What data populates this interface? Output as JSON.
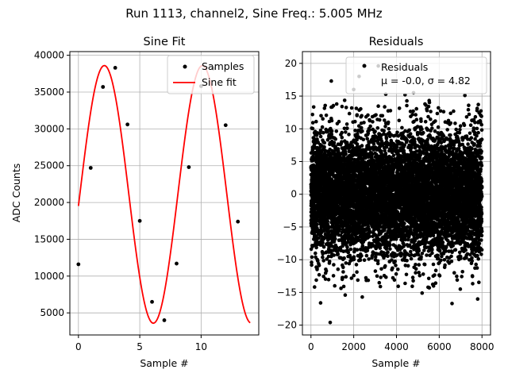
{
  "figure": {
    "suptitle": "Run 1113, channel2, Sine Freq.: 5.005 MHz"
  },
  "chart_data": [
    {
      "type": "line",
      "title": "Sine Fit",
      "xlabel": "Sample #",
      "ylabel": "ADC Counts",
      "xlim": [
        -0.7,
        14.7
      ],
      "ylim": [
        2000,
        40500
      ],
      "xticks": [
        0,
        5,
        10
      ],
      "yticks": [
        5000,
        10000,
        15000,
        20000,
        25000,
        30000,
        35000,
        40000
      ],
      "grid": true,
      "legend_position": "upper right",
      "series": [
        {
          "name": "Samples",
          "style": "scatter",
          "color": "#000000",
          "x": [
            0,
            1,
            2,
            3,
            4,
            5,
            6,
            7,
            8,
            9,
            10,
            11,
            12,
            13
          ],
          "y": [
            11600,
            24700,
            35700,
            38300,
            30600,
            17500,
            6500,
            4000,
            11700,
            24800,
            35800,
            38200,
            30500,
            17400
          ]
        },
        {
          "name": "Sine fit",
          "style": "line",
          "color": "#ff0000",
          "model": {
            "offset": 21100,
            "amplitude": 17500,
            "period_samples": 7.99,
            "phase_rad": -0.0903,
            "x_start": 0,
            "x_end": 14
          }
        }
      ]
    },
    {
      "type": "scatter",
      "title": "Residuals",
      "xlabel": "Sample #",
      "ylabel": "",
      "xlim": [
        -400,
        8400
      ],
      "ylim": [
        -21.5,
        21.8
      ],
      "xticks": [
        0,
        2000,
        4000,
        6000,
        8000
      ],
      "yticks": [
        -20,
        -15,
        -10,
        -5,
        0,
        5,
        10,
        15,
        20
      ],
      "grid": true,
      "legend_position": "upper right",
      "series": [
        {
          "name": "Residuals",
          "color": "#000000",
          "count": 8000,
          "x_range": [
            0,
            8000
          ],
          "mean": -0.0,
          "sigma": 4.82,
          "outliers": [
            [
              3150,
              19.6
            ],
            [
              2250,
              18.0
            ],
            [
              950,
              17.3
            ],
            [
              4800,
              15.5
            ],
            [
              3500,
              15.3
            ],
            [
              2000,
              16.0
            ],
            [
              4400,
              15.2
            ],
            [
              7200,
              15.1
            ],
            [
              450,
              -16.6
            ],
            [
              6600,
              -16.7
            ],
            [
              7800,
              -16.0
            ],
            [
              900,
              -19.6
            ],
            [
              2400,
              -15.7
            ],
            [
              1600,
              -15.4
            ],
            [
              5200,
              -15.1
            ]
          ]
        }
      ],
      "legend_stats": {
        "label": "Residuals",
        "stats_text": "μ = -0.0, σ = 4.82"
      }
    }
  ]
}
